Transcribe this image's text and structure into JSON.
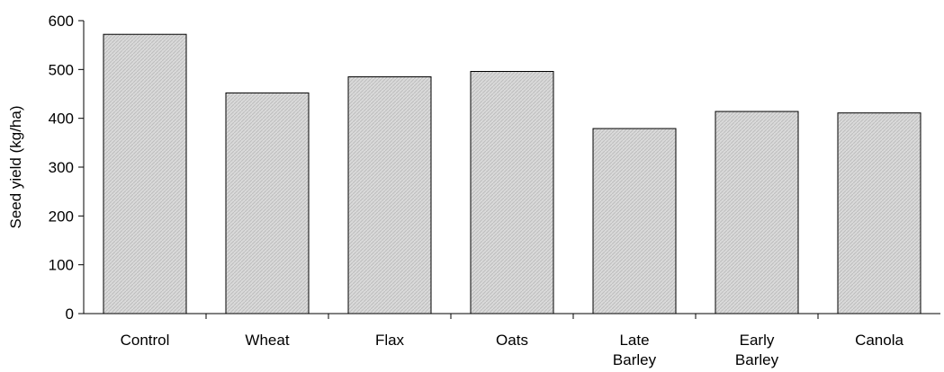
{
  "chart_data": {
    "type": "bar",
    "categories": [
      [
        "Control"
      ],
      [
        "Wheat"
      ],
      [
        "Flax"
      ],
      [
        "Oats"
      ],
      [
        "Late",
        "Barley"
      ],
      [
        "Early",
        "Barley"
      ],
      [
        "Canola"
      ]
    ],
    "values": [
      572,
      452,
      485,
      496,
      379,
      414,
      411
    ],
    "title": "",
    "xlabel": "",
    "ylabel": "Seed yield (kg/ha)",
    "ylim": [
      0,
      600
    ],
    "yticks": [
      0,
      100,
      200,
      300,
      400,
      500,
      600
    ],
    "grid": false,
    "legend": "none",
    "bar_fill": "#d8d8d8",
    "bar_stroke": "#000000"
  }
}
